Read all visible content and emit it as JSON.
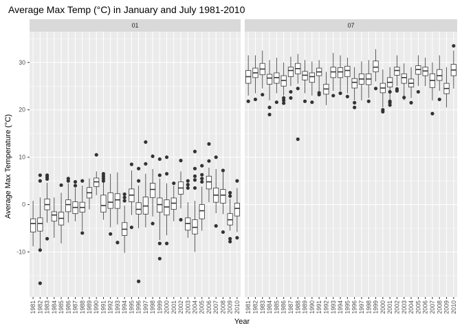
{
  "chart_data": {
    "type": "boxplot",
    "title": "Average Max Temp (°C) in January and July 1981-2010",
    "xlabel": "Year",
    "ylabel": "Average Max Temperature (°C)",
    "ylim": [
      -19.5,
      36.5
    ],
    "y_ticks": [
      -10,
      0,
      10,
      20,
      30
    ],
    "grid": true,
    "facets": [
      "01",
      "07"
    ],
    "categories": [
      "1981",
      "1982",
      "1983",
      "1984",
      "1985",
      "1986",
      "1987",
      "1988",
      "1989",
      "1990",
      "1991",
      "1992",
      "1993",
      "1994",
      "1995",
      "1996",
      "1997",
      "1998",
      "1999",
      "2000",
      "2001",
      "2002",
      "2003",
      "2004",
      "2005",
      "2006",
      "2007",
      "2008",
      "2009",
      "2010"
    ],
    "boxes": {
      "01": [
        {
          "low": -8.8,
          "q1": -5.8,
          "median": -4.0,
          "q3": -3.0,
          "high": 0.8,
          "outliers": []
        },
        {
          "low": -9.2,
          "q1": -5.6,
          "median": -4.0,
          "q3": -2.8,
          "high": 1.5,
          "outliers": [
            -16.6,
            -9.6,
            5.0,
            6.2
          ]
        },
        {
          "low": -3.8,
          "q1": -1.1,
          "median": 0.0,
          "q3": 1.2,
          "high": 4.6,
          "outliers": [
            -7.2,
            5.4,
            5.8,
            6.2
          ]
        },
        {
          "low": -7.0,
          "q1": -3.5,
          "median": -2.2,
          "q3": -1.5,
          "high": 1.5,
          "outliers": []
        },
        {
          "low": -8.2,
          "q1": -4.3,
          "median": -2.9,
          "q3": -1.6,
          "high": 2.5,
          "outliers": [
            4.1
          ]
        },
        {
          "low": -3.8,
          "q1": -1.5,
          "median": 0.0,
          "q3": 1.0,
          "high": 4.5,
          "outliers": [
            5.0,
            5.5
          ]
        },
        {
          "low": -3.5,
          "q1": -1.9,
          "median": -0.6,
          "q3": 0.6,
          "high": 3.5,
          "outliers": [
            4.0,
            4.8
          ]
        },
        {
          "low": -5.5,
          "q1": -1.6,
          "median": -0.6,
          "q3": 0.5,
          "high": 4.0,
          "outliers": [
            -6.0,
            5.0
          ]
        },
        {
          "low": -1.0,
          "q1": 1.4,
          "median": 2.5,
          "q3": 3.6,
          "high": 5.5,
          "outliers": []
        },
        {
          "low": 2.0,
          "q1": 3.8,
          "median": 4.8,
          "q3": 5.6,
          "high": 7.0,
          "outliers": [
            10.5
          ]
        },
        {
          "low": -3.2,
          "q1": -1.6,
          "median": -0.2,
          "q3": 2.0,
          "high": 4.8,
          "outliers": [
            5.0,
            5.5,
            6.0,
            6.5
          ]
        },
        {
          "low": -4.8,
          "q1": -0.8,
          "median": 0.5,
          "q3": 2.5,
          "high": 6.5,
          "outliers": [
            -6.2
          ]
        },
        {
          "low": -4.2,
          "q1": -0.8,
          "median": 1.0,
          "q3": 2.3,
          "high": 6.8,
          "outliers": [
            -8.0
          ]
        },
        {
          "low": -10.2,
          "q1": -6.5,
          "median": -5.2,
          "q3": -3.8,
          "high": -0.2,
          "outliers": [
            0.8,
            1.5,
            2.2
          ]
        },
        {
          "low": -2.2,
          "q1": 0.6,
          "median": 2.0,
          "q3": 3.3,
          "high": 7.2,
          "outliers": [
            -4.8,
            8.5
          ]
        },
        {
          "low": -5.0,
          "q1": -2.0,
          "median": -1.0,
          "q3": 0.4,
          "high": 4.0,
          "outliers": [
            -16.2,
            5.0,
            7.6
          ]
        },
        {
          "low": -4.8,
          "q1": -2.0,
          "median": -0.3,
          "q3": 1.6,
          "high": 6.5,
          "outliers": [
            8.6,
            13.2
          ]
        },
        {
          "low": -2.5,
          "q1": 1.5,
          "median": 3.2,
          "q3": 4.5,
          "high": 7.5,
          "outliers": [
            -4.0,
            10.2
          ]
        },
        {
          "low": -7.5,
          "q1": -1.6,
          "median": 0.0,
          "q3": 1.4,
          "high": 5.5,
          "outliers": [
            -11.4,
            -8.2,
            6.2,
            9.6
          ]
        },
        {
          "low": -6.5,
          "q1": -2.2,
          "median": -0.5,
          "q3": 1.0,
          "high": 4.5,
          "outliers": [
            -8.2,
            6.5,
            10.0
          ]
        },
        {
          "low": -3.5,
          "q1": -1.0,
          "median": 0.3,
          "q3": 1.4,
          "high": 4.0,
          "outliers": [
            4.5
          ]
        },
        {
          "low": -0.8,
          "q1": 2.2,
          "median": 3.5,
          "q3": 4.8,
          "high": 7.0,
          "outliers": [
            -3.2,
            9.3
          ]
        },
        {
          "low": -7.0,
          "q1": -5.4,
          "median": -4.0,
          "q3": -2.8,
          "high": 0.5,
          "outliers": [
            3.5,
            4.2,
            5.0
          ]
        },
        {
          "low": -10.0,
          "q1": -6.2,
          "median": -4.8,
          "q3": -3.2,
          "high": 0.8,
          "outliers": [
            3.5,
            5.2,
            6.0,
            7.6,
            11.2
          ]
        },
        {
          "low": -5.5,
          "q1": -3.0,
          "median": -1.3,
          "q3": 0.0,
          "high": 3.8,
          "outliers": [
            4.8,
            5.5,
            6.3,
            8.2
          ]
        },
        {
          "low": 0.5,
          "q1": 3.3,
          "median": 4.8,
          "q3": 6.0,
          "high": 7.8,
          "outliers": [
            9.2,
            12.8
          ]
        },
        {
          "low": -1.8,
          "q1": 0.5,
          "median": 2.0,
          "q3": 3.5,
          "high": 7.5,
          "outliers": [
            -4.5,
            10.0
          ]
        },
        {
          "low": -2.0,
          "q1": 0.3,
          "median": 2.0,
          "q3": 3.2,
          "high": 6.8,
          "outliers": [
            -5.8,
            7.2
          ]
        },
        {
          "low": -5.5,
          "q1": -4.3,
          "median": -3.2,
          "q3": -1.9,
          "high": 1.2,
          "outliers": [
            -7.8,
            -7.2,
            1.8,
            2.5
          ]
        },
        {
          "low": -5.8,
          "q1": -2.4,
          "median": -0.8,
          "q3": 0.3,
          "high": 3.5,
          "outliers": [
            -7.0,
            5.0
          ]
        }
      ],
      "07": [
        {
          "low": 23.0,
          "q1": 25.6,
          "median": 27.0,
          "q3": 28.3,
          "high": 31.5,
          "outliers": [
            21.8
          ]
        },
        {
          "low": 23.5,
          "q1": 26.8,
          "median": 27.8,
          "q3": 28.8,
          "high": 31.5,
          "outliers": [
            22.2
          ]
        },
        {
          "low": 24.5,
          "q1": 27.4,
          "median": 28.6,
          "q3": 29.8,
          "high": 32.5,
          "outliers": [
            23.2
          ]
        },
        {
          "low": 22.0,
          "q1": 25.4,
          "median": 26.7,
          "q3": 27.5,
          "high": 30.5,
          "outliers": [
            19.0,
            20.5
          ]
        },
        {
          "low": 23.5,
          "q1": 25.6,
          "median": 26.8,
          "q3": 27.8,
          "high": 31.0,
          "outliers": [
            21.6
          ]
        },
        {
          "low": 23.0,
          "q1": 25.0,
          "median": 26.2,
          "q3": 27.2,
          "high": 30.0,
          "outliers": [
            21.4,
            22.0,
            22.5
          ]
        },
        {
          "low": 25.0,
          "q1": 27.0,
          "median": 28.3,
          "q3": 29.0,
          "high": 31.2,
          "outliers": [
            22.5,
            23.8
          ]
        },
        {
          "low": 25.5,
          "q1": 27.6,
          "median": 28.7,
          "q3": 29.8,
          "high": 31.8,
          "outliers": [
            13.8,
            24.5
          ]
        },
        {
          "low": 23.5,
          "q1": 26.3,
          "median": 27.3,
          "q3": 28.1,
          "high": 30.5,
          "outliers": [
            21.8
          ]
        },
        {
          "low": 23.0,
          "q1": 25.8,
          "median": 27.0,
          "q3": 27.8,
          "high": 30.2,
          "outliers": [
            21.6
          ]
        },
        {
          "low": 24.0,
          "q1": 27.2,
          "median": 28.0,
          "q3": 28.8,
          "high": 30.5,
          "outliers": [
            23.2,
            23.6
          ]
        },
        {
          "low": 21.0,
          "q1": 23.3,
          "median": 24.4,
          "q3": 25.4,
          "high": 28.0,
          "outliers": []
        },
        {
          "low": 24.0,
          "q1": 26.8,
          "median": 28.0,
          "q3": 29.0,
          "high": 32.0,
          "outliers": [
            23.0
          ]
        },
        {
          "low": 24.0,
          "q1": 26.8,
          "median": 28.0,
          "q3": 28.9,
          "high": 31.5,
          "outliers": [
            23.5
          ]
        },
        {
          "low": 23.5,
          "q1": 27.0,
          "median": 28.3,
          "q3": 29.2,
          "high": 31.0,
          "outliers": [
            22.8
          ]
        },
        {
          "low": 22.0,
          "q1": 24.6,
          "median": 25.8,
          "q3": 26.6,
          "high": 29.0,
          "outliers": [
            20.5,
            21.5
          ]
        },
        {
          "low": 22.0,
          "q1": 25.4,
          "median": 26.5,
          "q3": 27.6,
          "high": 30.2,
          "outliers": []
        },
        {
          "low": 22.5,
          "q1": 25.3,
          "median": 26.5,
          "q3": 27.6,
          "high": 30.5,
          "outliers": [
            21.8
          ]
        },
        {
          "low": 26.0,
          "q1": 28.0,
          "median": 29.0,
          "q3": 30.3,
          "high": 32.8,
          "outliers": [
            24.5
          ]
        },
        {
          "low": 20.5,
          "q1": 23.6,
          "median": 24.6,
          "q3": 25.6,
          "high": 28.5,
          "outliers": [
            19.6,
            20.0
          ]
        },
        {
          "low": 22.0,
          "q1": 24.8,
          "median": 25.8,
          "q3": 26.8,
          "high": 29.0,
          "outliers": [
            21.0,
            21.5,
            21.8,
            23.8
          ]
        },
        {
          "low": 25.0,
          "q1": 27.3,
          "median": 28.3,
          "q3": 29.0,
          "high": 31.5,
          "outliers": [
            24.0,
            24.4
          ]
        },
        {
          "low": 22.0,
          "q1": 25.6,
          "median": 26.8,
          "q3": 27.6,
          "high": 29.8,
          "outliers": [
            22.6
          ]
        },
        {
          "low": 22.5,
          "q1": 24.8,
          "median": 25.6,
          "q3": 26.5,
          "high": 29.0,
          "outliers": [
            21.5
          ]
        },
        {
          "low": 25.0,
          "q1": 27.5,
          "median": 28.5,
          "q3": 29.3,
          "high": 31.5,
          "outliers": [
            23.8
          ]
        },
        {
          "low": 25.0,
          "q1": 27.2,
          "median": 28.2,
          "q3": 29.0,
          "high": 31.0,
          "outliers": []
        },
        {
          "low": 22.0,
          "q1": 24.7,
          "median": 26.2,
          "q3": 27.6,
          "high": 30.0,
          "outliers": [
            19.2
          ]
        },
        {
          "low": 24.0,
          "q1": 26.2,
          "median": 27.2,
          "q3": 28.5,
          "high": 31.5,
          "outliers": [
            22.2
          ]
        },
        {
          "low": 20.5,
          "q1": 23.4,
          "median": 24.5,
          "q3": 25.6,
          "high": 29.0,
          "outliers": []
        },
        {
          "low": 24.5,
          "q1": 27.2,
          "median": 28.4,
          "q3": 29.6,
          "high": 32.5,
          "outliers": [
            33.5
          ]
        }
      ]
    }
  },
  "colors": {
    "panel_background": "#ebebeb",
    "grid_major": "#ffffff",
    "strip_background": "#d9d9d9",
    "box_fill": "#ffffff",
    "box_line": "#333333",
    "outlier": "#333333"
  }
}
